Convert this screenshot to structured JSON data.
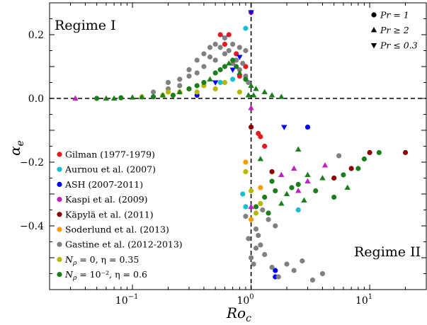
{
  "chart_data": {
    "type": "scatter",
    "title": "",
    "xlabel": "Ro",
    "xlabel_sub": "c",
    "ylabel": "α",
    "ylabel_sub": "e",
    "xscale": "log",
    "xlim": [
      0.02,
      30
    ],
    "ylim": [
      -0.6,
      0.3
    ],
    "x_ticks": [
      {
        "value": 0.1,
        "base": "10",
        "exp": "−1"
      },
      {
        "value": 1,
        "base": "10",
        "exp": "0"
      },
      {
        "value": 10,
        "base": "10",
        "exp": "1"
      }
    ],
    "y_ticks": [
      {
        "value": 0.2,
        "label": "0.2"
      },
      {
        "value": 0.0,
        "label": "0.0"
      },
      {
        "value": -0.2,
        "label": "−0.2"
      },
      {
        "value": -0.4,
        "label": "−0.4"
      }
    ],
    "reference_lines": {
      "x": 1,
      "y": 0
    },
    "annotations": [
      {
        "id": "regime1",
        "text": "Regime I"
      },
      {
        "id": "regime2",
        "text": "Regime II"
      }
    ],
    "marker_legend": [
      {
        "shape": "circle",
        "label": "Pr = 1"
      },
      {
        "shape": "triangle-up",
        "label": "Pr ≥ 2"
      },
      {
        "shape": "triangle-down",
        "label": "Pr ≤ 0.3"
      }
    ],
    "color_legend_position": "lower-left",
    "marker_legend_position": "top-right",
    "series": [
      {
        "name": "Gilman (1977-1979)",
        "color": "#e41a1c",
        "points": [
          {
            "x": 0.55,
            "y": 0.2,
            "m": "c"
          },
          {
            "x": 0.6,
            "y": 0.17,
            "m": "c"
          },
          {
            "x": 0.65,
            "y": 0.2,
            "m": "c"
          },
          {
            "x": 0.75,
            "y": 0.14,
            "m": "c"
          },
          {
            "x": 0.9,
            "y": 0.1,
            "m": "c"
          },
          {
            "x": 1.0,
            "y": 0.27,
            "m": "c"
          },
          {
            "x": 1.15,
            "y": -0.11,
            "m": "c"
          },
          {
            "x": 1.2,
            "y": -0.12,
            "m": "c"
          },
          {
            "x": 1.3,
            "y": -0.15,
            "m": "c"
          },
          {
            "x": 0.8,
            "y": 0.07,
            "m": "c"
          }
        ]
      },
      {
        "name": "Aurnou et al. (2007)",
        "color": "#17becf",
        "points": [
          {
            "x": 0.55,
            "y": 0.05,
            "m": "c"
          },
          {
            "x": 0.7,
            "y": 0.06,
            "m": "c"
          },
          {
            "x": 0.9,
            "y": 0.22,
            "m": "c"
          },
          {
            "x": 0.85,
            "y": -0.3,
            "m": "c"
          },
          {
            "x": 0.9,
            "y": -0.34,
            "m": "c"
          },
          {
            "x": 2.5,
            "y": -0.35,
            "m": "c"
          }
        ]
      },
      {
        "name": "ASH (2007-2011)",
        "color": "#0000ff",
        "points": [
          {
            "x": 0.35,
            "y": 0.01,
            "m": "c"
          },
          {
            "x": 1.0,
            "y": 0.27,
            "m": "d"
          },
          {
            "x": 0.6,
            "y": 0.19,
            "m": "d"
          },
          {
            "x": 0.8,
            "y": 0.13,
            "m": "d"
          },
          {
            "x": 0.7,
            "y": 0.09,
            "m": "d"
          },
          {
            "x": 1.9,
            "y": -0.09,
            "m": "d"
          },
          {
            "x": 3.0,
            "y": -0.09,
            "m": "c"
          },
          {
            "x": 1.6,
            "y": -0.54,
            "m": "c"
          },
          {
            "x": 1.6,
            "y": -0.56,
            "m": "c"
          },
          {
            "x": 0.5,
            "y": 0.05,
            "m": "d"
          }
        ]
      },
      {
        "name": "Kaspi et al. (2009)",
        "color": "#c020c0",
        "points": [
          {
            "x": 0.033,
            "y": 0.0,
            "m": "u"
          },
          {
            "x": 1.0,
            "y": -0.03,
            "m": "u"
          },
          {
            "x": 2.3,
            "y": -0.22,
            "m": "u"
          },
          {
            "x": 2.5,
            "y": -0.29,
            "m": "u"
          },
          {
            "x": 3.0,
            "y": -0.26,
            "m": "u"
          },
          {
            "x": 4.2,
            "y": -0.21,
            "m": "u"
          },
          {
            "x": 1.8,
            "y": -0.24,
            "m": "u"
          },
          {
            "x": 1.0,
            "y": -0.34,
            "m": "u"
          }
        ]
      },
      {
        "name": "Käpylä et al. (2011)",
        "color": "#8b0000",
        "points": [
          {
            "x": 1.0,
            "y": -0.09,
            "m": "c"
          },
          {
            "x": 1.5,
            "y": -0.23,
            "m": "c"
          },
          {
            "x": 7.0,
            "y": -0.22,
            "m": "c"
          },
          {
            "x": 10.0,
            "y": -0.17,
            "m": "c"
          },
          {
            "x": 20.0,
            "y": -0.17,
            "m": "c"
          },
          {
            "x": 5.0,
            "y": -0.25,
            "m": "c"
          }
        ]
      },
      {
        "name": "Soderlund et al. (2013)",
        "color": "#ff9900",
        "points": [
          {
            "x": 0.9,
            "y": -0.2,
            "m": "c"
          },
          {
            "x": 1.0,
            "y": -0.38,
            "m": "c"
          },
          {
            "x": 1.2,
            "y": -0.28,
            "m": "c"
          }
        ]
      },
      {
        "name": "Gastine et al. (2012-2013)",
        "color": "#808080",
        "points": [
          {
            "x": 0.15,
            "y": 0.02,
            "m": "c"
          },
          {
            "x": 0.2,
            "y": 0.03,
            "m": "c"
          },
          {
            "x": 0.2,
            "y": 0.05,
            "m": "c"
          },
          {
            "x": 0.25,
            "y": 0.06,
            "m": "c"
          },
          {
            "x": 0.3,
            "y": 0.09,
            "m": "c"
          },
          {
            "x": 0.35,
            "y": 0.12,
            "m": "c"
          },
          {
            "x": 0.4,
            "y": 0.14,
            "m": "c"
          },
          {
            "x": 0.45,
            "y": 0.16,
            "m": "c"
          },
          {
            "x": 0.5,
            "y": 0.17,
            "m": "c"
          },
          {
            "x": 0.6,
            "y": 0.19,
            "m": "c"
          },
          {
            "x": 0.7,
            "y": 0.17,
            "m": "c"
          },
          {
            "x": 0.8,
            "y": 0.16,
            "m": "c"
          },
          {
            "x": 0.9,
            "y": 0.15,
            "m": "c"
          },
          {
            "x": 0.3,
            "y": 0.07,
            "m": "c"
          },
          {
            "x": 0.4,
            "y": 0.1,
            "m": "c"
          },
          {
            "x": 0.5,
            "y": 0.12,
            "m": "c"
          },
          {
            "x": 0.6,
            "y": 0.14,
            "m": "c"
          },
          {
            "x": 0.7,
            "y": 0.11,
            "m": "c"
          },
          {
            "x": 0.8,
            "y": 0.09,
            "m": "c"
          },
          {
            "x": 0.9,
            "y": 0.07,
            "m": "c"
          },
          {
            "x": 0.25,
            "y": 0.04,
            "m": "c"
          },
          {
            "x": 0.35,
            "y": 0.08,
            "m": "c"
          },
          {
            "x": 0.45,
            "y": 0.13,
            "m": "c"
          },
          {
            "x": 0.55,
            "y": 0.16,
            "m": "c"
          },
          {
            "x": 0.65,
            "y": 0.15,
            "m": "c"
          },
          {
            "x": 0.75,
            "y": 0.12,
            "m": "c"
          },
          {
            "x": 0.85,
            "y": 0.11,
            "m": "c"
          },
          {
            "x": 0.95,
            "y": 0.05,
            "m": "c"
          },
          {
            "x": 0.9,
            "y": -0.37,
            "m": "c"
          },
          {
            "x": 0.95,
            "y": -0.44,
            "m": "c"
          },
          {
            "x": 1.0,
            "y": -0.5,
            "m": "c"
          },
          {
            "x": 1.05,
            "y": -0.52,
            "m": "c"
          },
          {
            "x": 1.1,
            "y": -0.41,
            "m": "c"
          },
          {
            "x": 1.15,
            "y": -0.43,
            "m": "c"
          },
          {
            "x": 1.2,
            "y": -0.46,
            "m": "c"
          },
          {
            "x": 1.3,
            "y": -0.49,
            "m": "c"
          },
          {
            "x": 1.4,
            "y": -0.38,
            "m": "c"
          },
          {
            "x": 1.5,
            "y": -0.53,
            "m": "c"
          },
          {
            "x": 1.7,
            "y": -0.56,
            "m": "c"
          },
          {
            "x": 2.0,
            "y": -0.52,
            "m": "c"
          },
          {
            "x": 2.3,
            "y": -0.54,
            "m": "c"
          },
          {
            "x": 2.7,
            "y": -0.51,
            "m": "c"
          },
          {
            "x": 3.3,
            "y": -0.57,
            "m": "c"
          },
          {
            "x": 4.0,
            "y": -0.55,
            "m": "c"
          },
          {
            "x": 5.5,
            "y": -0.18,
            "m": "c"
          },
          {
            "x": 1.25,
            "y": -0.35,
            "m": "c"
          },
          {
            "x": 1.6,
            "y": -0.4,
            "m": "c"
          },
          {
            "x": 1.1,
            "y": -0.47,
            "m": "c"
          }
        ]
      },
      {
        "name": "N_ρ = 0, η = 0.35",
        "color": "#b5b800",
        "points": [
          {
            "x": 0.12,
            "y": 0.005,
            "m": "c"
          },
          {
            "x": 0.18,
            "y": 0.01,
            "m": "c"
          },
          {
            "x": 0.25,
            "y": 0.02,
            "m": "c"
          },
          {
            "x": 0.3,
            "y": 0.03,
            "m": "c"
          },
          {
            "x": 0.35,
            "y": 0.02,
            "m": "c"
          },
          {
            "x": 0.4,
            "y": 0.04,
            "m": "c"
          },
          {
            "x": 0.5,
            "y": 0.03,
            "m": "c"
          },
          {
            "x": 0.6,
            "y": 0.05,
            "m": "c"
          },
          {
            "x": 0.8,
            "y": 0.02,
            "m": "c"
          },
          {
            "x": 0.9,
            "y": -0.23,
            "m": "c"
          },
          {
            "x": 1.0,
            "y": -0.29,
            "m": "c"
          },
          {
            "x": 1.1,
            "y": -0.36,
            "m": "c"
          },
          {
            "x": 1.2,
            "y": -0.33,
            "m": "c"
          },
          {
            "x": 0.2,
            "y": 0.02,
            "m": "c"
          }
        ]
      },
      {
        "name": "N_ρ = 10⁻², η = 0.6",
        "color": "#1a7f1a",
        "points": [
          {
            "x": 0.05,
            "y": 0.0,
            "m": "c"
          },
          {
            "x": 0.06,
            "y": 0.0,
            "m": "u"
          },
          {
            "x": 0.07,
            "y": 0.0,
            "m": "u"
          },
          {
            "x": 0.08,
            "y": 0.002,
            "m": "c"
          },
          {
            "x": 0.1,
            "y": 0.003,
            "m": "u"
          },
          {
            "x": 0.12,
            "y": 0.004,
            "m": "u"
          },
          {
            "x": 0.15,
            "y": 0.005,
            "m": "c"
          },
          {
            "x": 0.18,
            "y": 0.01,
            "m": "u"
          },
          {
            "x": 0.22,
            "y": 0.01,
            "m": "c"
          },
          {
            "x": 0.25,
            "y": 0.02,
            "m": "u"
          },
          {
            "x": 0.3,
            "y": 0.03,
            "m": "c"
          },
          {
            "x": 0.35,
            "y": 0.04,
            "m": "c"
          },
          {
            "x": 0.4,
            "y": 0.05,
            "m": "c"
          },
          {
            "x": 0.45,
            "y": 0.06,
            "m": "u"
          },
          {
            "x": 0.5,
            "y": 0.08,
            "m": "c"
          },
          {
            "x": 0.55,
            "y": 0.09,
            "m": "c"
          },
          {
            "x": 0.6,
            "y": 0.1,
            "m": "c"
          },
          {
            "x": 0.65,
            "y": 0.11,
            "m": "u"
          },
          {
            "x": 0.7,
            "y": 0.12,
            "m": "c"
          },
          {
            "x": 0.75,
            "y": 0.1,
            "m": "c"
          },
          {
            "x": 0.8,
            "y": 0.08,
            "m": "u"
          },
          {
            "x": 0.9,
            "y": 0.06,
            "m": "c"
          },
          {
            "x": 1.0,
            "y": 0.04,
            "m": "u"
          },
          {
            "x": 1.1,
            "y": 0.03,
            "m": "u"
          },
          {
            "x": 1.3,
            "y": 0.02,
            "m": "u"
          },
          {
            "x": 1.5,
            "y": 0.01,
            "m": "u"
          },
          {
            "x": 1.8,
            "y": 0.005,
            "m": "u"
          },
          {
            "x": 0.95,
            "y": 0.01,
            "m": "u"
          },
          {
            "x": 1.05,
            "y": 0.01,
            "m": "u"
          },
          {
            "x": 1.2,
            "y": -0.19,
            "m": "u"
          },
          {
            "x": 1.5,
            "y": -0.26,
            "m": "c"
          },
          {
            "x": 2.0,
            "y": -0.3,
            "m": "u"
          },
          {
            "x": 2.5,
            "y": -0.27,
            "m": "c"
          },
          {
            "x": 3.0,
            "y": -0.24,
            "m": "u"
          },
          {
            "x": 3.5,
            "y": -0.29,
            "m": "c"
          },
          {
            "x": 4.0,
            "y": -0.25,
            "m": "u"
          },
          {
            "x": 5.0,
            "y": -0.31,
            "m": "c"
          },
          {
            "x": 6.0,
            "y": -0.24,
            "m": "c"
          },
          {
            "x": 6.5,
            "y": -0.28,
            "m": "u"
          },
          {
            "x": 8.0,
            "y": -0.22,
            "m": "c"
          },
          {
            "x": 9.0,
            "y": -0.19,
            "m": "c"
          },
          {
            "x": 12.0,
            "y": -0.17,
            "m": "c"
          },
          {
            "x": 1.1,
            "y": -0.34,
            "m": "c"
          },
          {
            "x": 1.3,
            "y": -0.31,
            "m": "c"
          },
          {
            "x": 1.8,
            "y": -0.33,
            "m": "u"
          },
          {
            "x": 2.2,
            "y": -0.28,
            "m": "c"
          },
          {
            "x": 2.8,
            "y": -0.32,
            "m": "u"
          },
          {
            "x": 1.4,
            "y": -0.36,
            "m": "c"
          },
          {
            "x": 2.5,
            "y": -0.16,
            "m": "u"
          },
          {
            "x": 1.6,
            "y": -0.29,
            "m": "c"
          }
        ]
      }
    ]
  }
}
